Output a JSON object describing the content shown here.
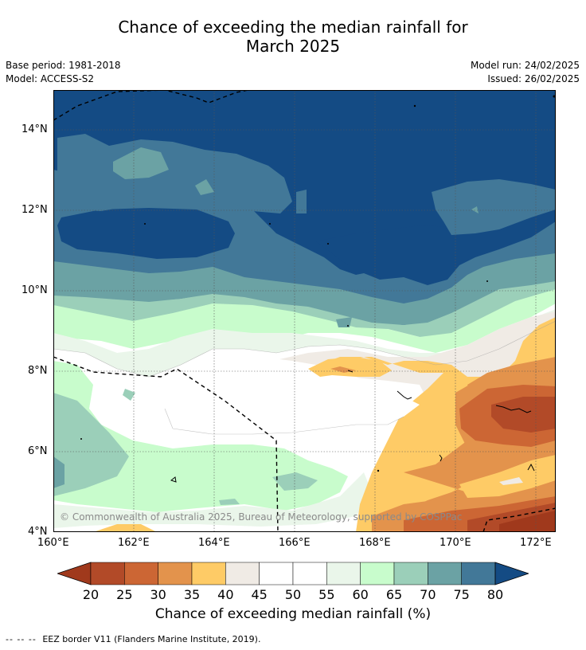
{
  "title_line1": "Chance of exceeding the median rainfall for",
  "title_line2": "March 2025",
  "base_period": "Base period: 1981-2018",
  "model": "Model: ACCESS-S2",
  "model_run": "Model run: 24/02/2025",
  "issued": "Issued: 26/02/2025",
  "y_ticks": [
    "14°N",
    "12°N",
    "10°N",
    "8°N",
    "6°N",
    "4°N"
  ],
  "x_ticks": [
    "160°E",
    "162°E",
    "164°E",
    "166°E",
    "168°E",
    "170°E",
    "172°E"
  ],
  "copyright": "© Commonwealth of Australia 2025, Bureau of Meteorology, supported by COSPPac",
  "colorbar": {
    "ticks": [
      "20",
      "25",
      "30",
      "35",
      "40",
      "45",
      "50",
      "55",
      "60",
      "65",
      "70",
      "75",
      "80"
    ],
    "colors": [
      "#a0391c",
      "#b24a28",
      "#cc6634",
      "#e3934c",
      "#fecb66",
      "#f0ebe5",
      "#ffffff",
      "#ffffff",
      "#eaf6ea",
      "#c8fccc",
      "#9bcfb9",
      "#6ba2a4",
      "#427898",
      "#144b84"
    ],
    "title": "Chance of exceeding median rainfall (%)"
  },
  "footnote_dashes": "-- -- --",
  "footnote": "EEZ border V11 (Flanders Marine Institute, 2019)."
}
